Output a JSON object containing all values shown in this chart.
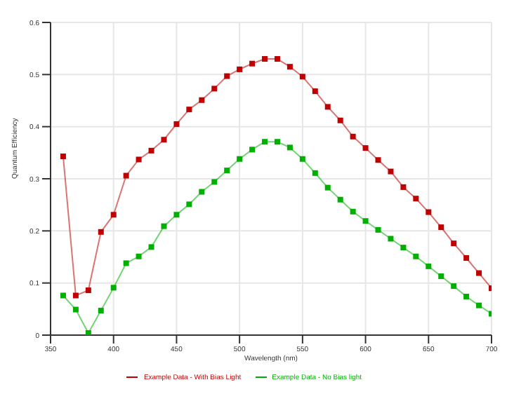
{
  "chart_data": {
    "type": "line",
    "xlabel": "Wavelength (nm)",
    "ylabel": "Quantum Efficiency",
    "x": [
      360,
      370,
      380,
      390,
      400,
      410,
      420,
      430,
      440,
      450,
      460,
      470,
      480,
      490,
      500,
      510,
      520,
      530,
      540,
      550,
      560,
      570,
      580,
      590,
      600,
      610,
      620,
      630,
      640,
      650,
      660,
      670,
      680,
      690,
      700
    ],
    "series": [
      {
        "name": "Example Data - With Bias Light",
        "color": "#c00000",
        "values": [
          0.343,
          0.076,
          0.086,
          0.198,
          0.231,
          0.306,
          0.337,
          0.354,
          0.375,
          0.405,
          0.433,
          0.451,
          0.473,
          0.497,
          0.51,
          0.521,
          0.53,
          0.53,
          0.515,
          0.496,
          0.468,
          0.438,
          0.412,
          0.381,
          0.359,
          0.336,
          0.314,
          0.284,
          0.262,
          0.236,
          0.207,
          0.176,
          0.148,
          0.119,
          0.09
        ]
      },
      {
        "name": "Example Data - No Bias light",
        "color": "#00b000",
        "values": [
          0.076,
          0.049,
          0.004,
          0.047,
          0.091,
          0.138,
          0.151,
          0.169,
          0.209,
          0.231,
          0.251,
          0.275,
          0.294,
          0.316,
          0.338,
          0.356,
          0.371,
          0.371,
          0.36,
          0.338,
          0.311,
          0.283,
          0.26,
          0.237,
          0.219,
          0.202,
          0.185,
          0.168,
          0.151,
          0.132,
          0.113,
          0.094,
          0.074,
          0.057,
          0.041
        ]
      }
    ],
    "xlim": [
      350,
      700
    ],
    "xticks": [
      350,
      400,
      450,
      500,
      550,
      600,
      650,
      700
    ],
    "ylim": [
      0,
      0.6
    ],
    "yticks": [
      0,
      0.1,
      0.2,
      0.3,
      0.4,
      0.5,
      0.6
    ],
    "grid": true,
    "legend": "bottom",
    "marker": "square",
    "line_style": "solid"
  }
}
